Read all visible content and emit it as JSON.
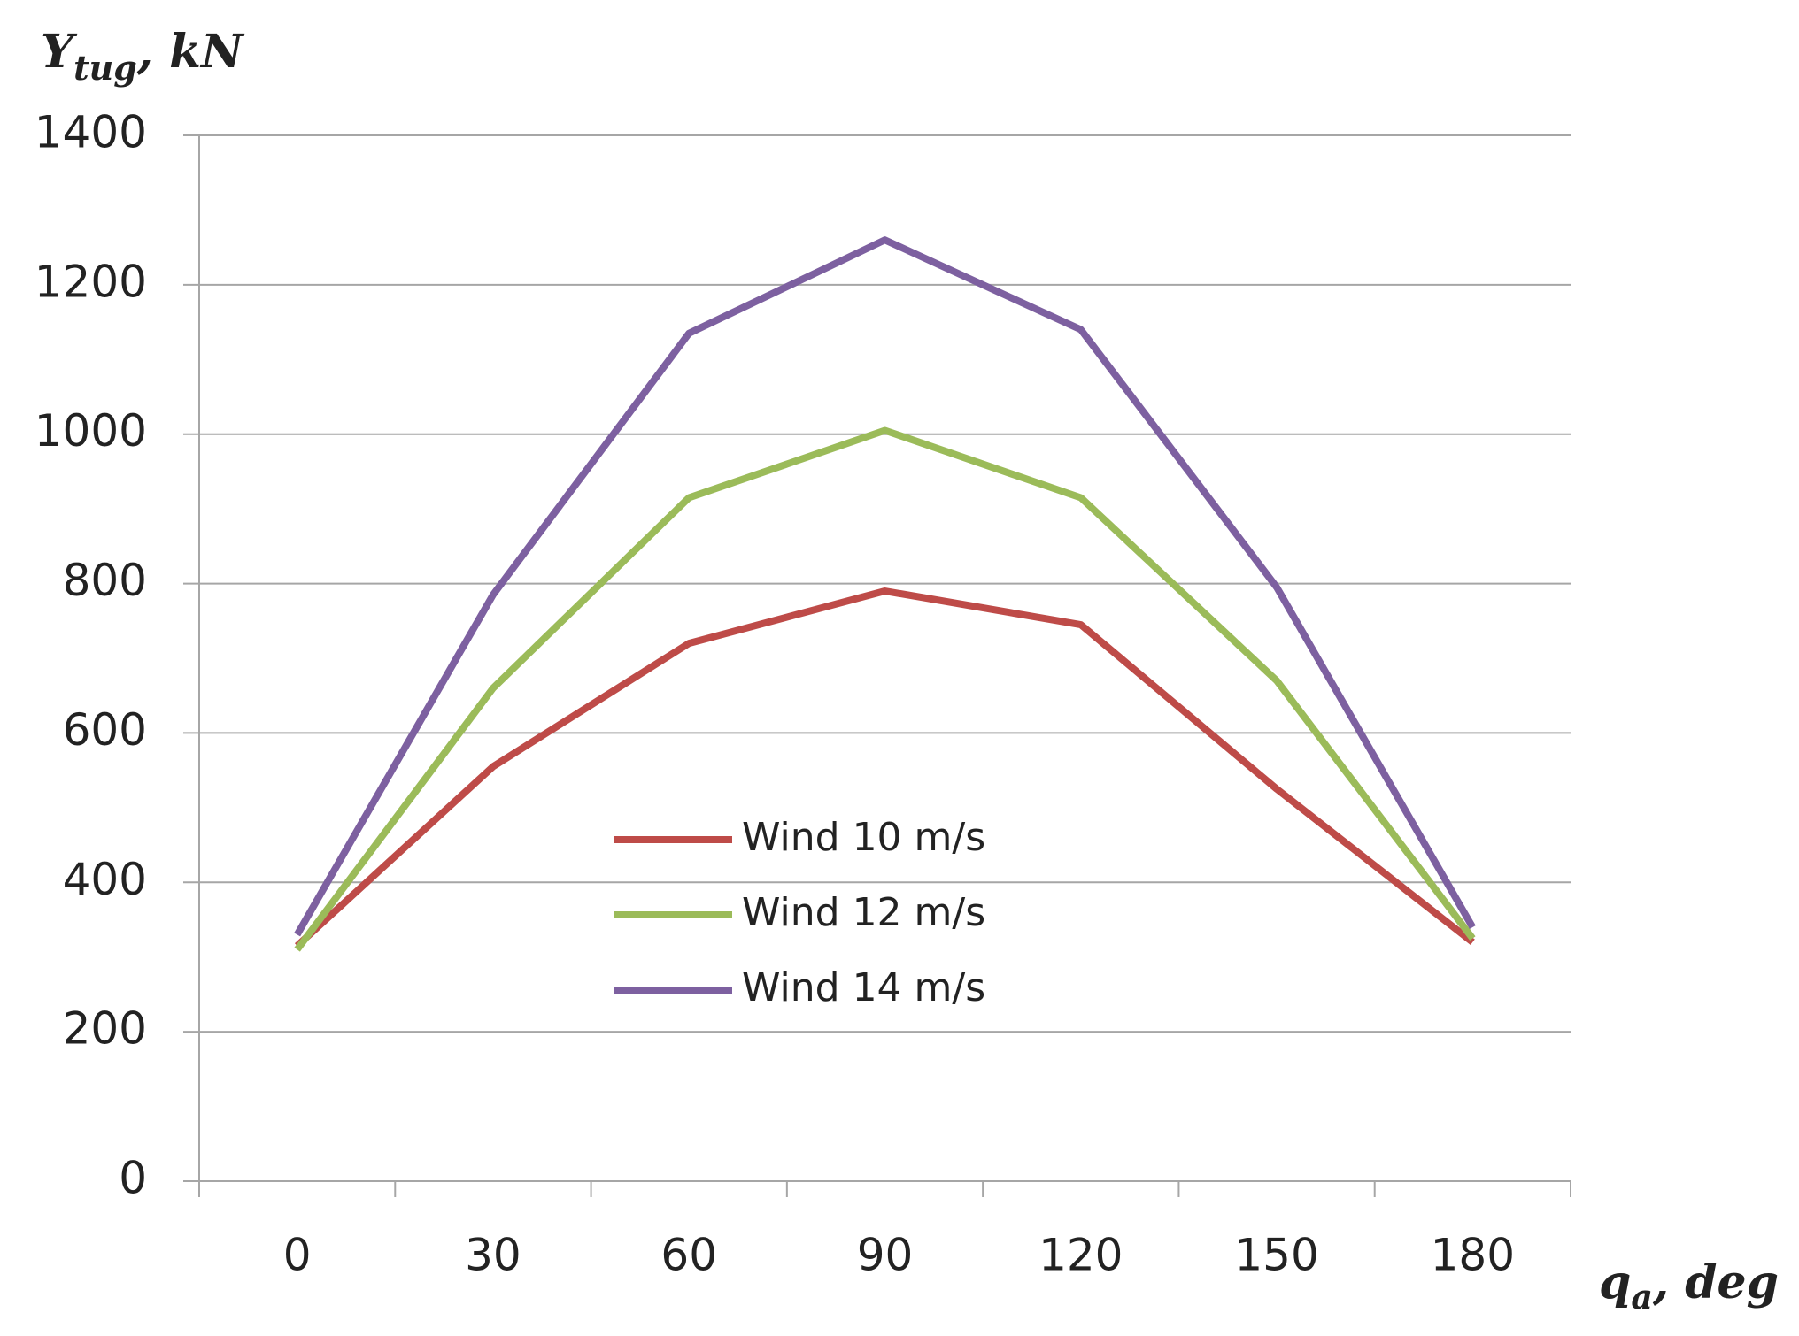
{
  "chart_data": {
    "type": "line",
    "y_label": {
      "main": "Y",
      "sub": "tug",
      "rest": ", kN"
    },
    "x_label": {
      "main": "q",
      "sub": "a",
      "rest": ", deg"
    },
    "categories": [
      "0",
      "30",
      "60",
      "90",
      "120",
      "150",
      "180"
    ],
    "series": [
      {
        "name": "Wind 10 m/s",
        "color": "#be4b48",
        "values": [
          315,
          555,
          720,
          790,
          745,
          525,
          320
        ]
      },
      {
        "name": "Wind 12 m/s",
        "color": "#9bbb59",
        "values": [
          310,
          660,
          915,
          1005,
          915,
          670,
          325
        ]
      },
      {
        "name": "Wind 14 m/s",
        "color": "#7d60a0",
        "values": [
          330,
          785,
          1135,
          1260,
          1140,
          795,
          340
        ]
      }
    ],
    "ylim": [
      0,
      1400
    ],
    "yticks": [
      0,
      200,
      400,
      600,
      800,
      1000,
      1200,
      1400
    ],
    "grid": true
  }
}
